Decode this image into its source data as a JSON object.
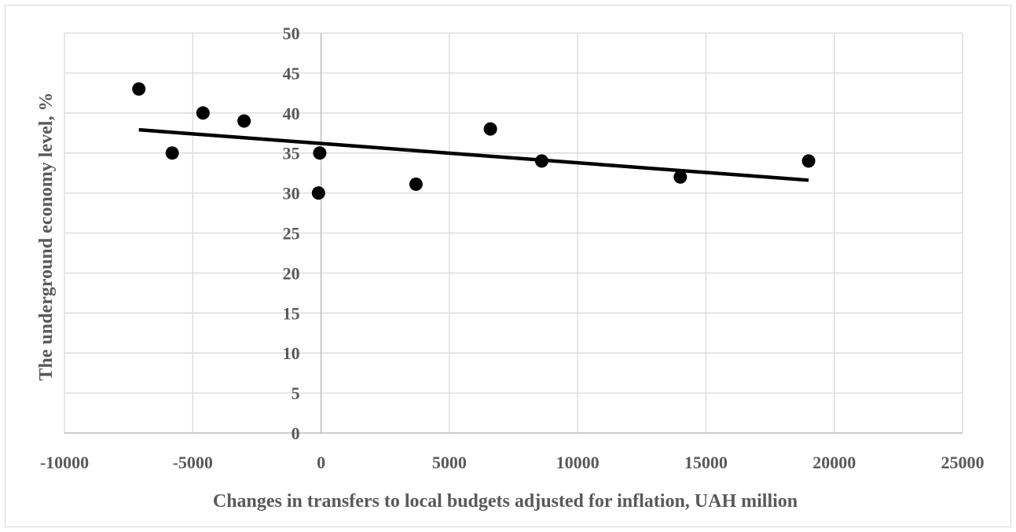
{
  "chart_data": {
    "type": "scatter",
    "title": "",
    "xlabel": "Changes in transfers to local budgets adjusted for inflation, UAH million",
    "ylabel": "The underground economy level, %",
    "xlim": [
      -10000,
      25000
    ],
    "ylim": [
      0,
      50
    ],
    "xticks": [
      -10000,
      -5000,
      0,
      5000,
      10000,
      15000,
      20000,
      25000
    ],
    "yticks": [
      0,
      5,
      10,
      15,
      20,
      25,
      30,
      35,
      40,
      45,
      50
    ],
    "grid": true,
    "legend": "none",
    "colors": {
      "points": "#000000",
      "trendline": "#000000",
      "grid": "#d9d9d9",
      "text": "#595959"
    },
    "series": [
      {
        "points": [
          {
            "x": -7100,
            "y": 43
          },
          {
            "x": -5800,
            "y": 35
          },
          {
            "x": -4600,
            "y": 40
          },
          {
            "x": -3000,
            "y": 39
          },
          {
            "x": -50,
            "y": 35
          },
          {
            "x": -100,
            "y": 30
          },
          {
            "x": 3700,
            "y": 31.1
          },
          {
            "x": 6600,
            "y": 38
          },
          {
            "x": 8600,
            "y": 34
          },
          {
            "x": 14000,
            "y": 32
          },
          {
            "x": 19000,
            "y": 34
          }
        ]
      }
    ],
    "trendline": {
      "type": "linear",
      "x": [
        -7100,
        19000
      ],
      "y": [
        37.9,
        31.6
      ]
    }
  }
}
